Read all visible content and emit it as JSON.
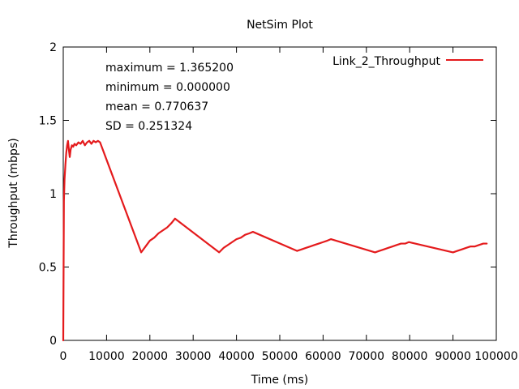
{
  "chart_data": {
    "type": "line",
    "title": "NetSim Plot",
    "xlabel": "Time (ms)",
    "ylabel": "Throughput (mbps)",
    "xlim": [
      0,
      100000
    ],
    "ylim": [
      0,
      2
    ],
    "grid": false,
    "legend_position": "top-right",
    "x_ticks": [
      0,
      10000,
      20000,
      30000,
      40000,
      50000,
      60000,
      70000,
      80000,
      90000,
      100000
    ],
    "x_tick_labels": [
      "0",
      "10000",
      "20000",
      "30000",
      "40000",
      "50000",
      "60000",
      "70000",
      "80000",
      "90000",
      "100000"
    ],
    "y_ticks": [
      0,
      0.5,
      1,
      1.5,
      2
    ],
    "y_tick_labels": [
      "0",
      "0.5",
      "1",
      "1.5",
      "2"
    ],
    "annotations": [
      "maximum = 1.365200",
      "minimum = 0.000000",
      "mean = 0.770637",
      "SD = 0.251324"
    ],
    "series": [
      {
        "name": "Link_2_Throughput",
        "color": "#e41a1c",
        "x": [
          0,
          150,
          300,
          500,
          700,
          900,
          1100,
          1300,
          1500,
          1700,
          2000,
          2300,
          2600,
          3000,
          3500,
          4000,
          4500,
          5000,
          5500,
          6000,
          6500,
          7000,
          7500,
          8000,
          8500,
          18000,
          19000,
          20000,
          21000,
          22000,
          23000,
          24000,
          25000,
          25800,
          36000,
          37000,
          38000,
          39000,
          40000,
          41000,
          42000,
          43000,
          43800,
          54000,
          55000,
          56000,
          57000,
          58000,
          59000,
          60000,
          61000,
          61800,
          72000,
          73000,
          74000,
          75000,
          76000,
          77000,
          78000,
          79000,
          79800,
          90000,
          91000,
          92000,
          93000,
          94000,
          95000,
          96000,
          97000,
          97800
        ],
        "y": [
          0,
          0.95,
          1.1,
          1.2,
          1.28,
          1.33,
          1.36,
          1.3,
          1.25,
          1.3,
          1.33,
          1.32,
          1.34,
          1.33,
          1.35,
          1.34,
          1.36,
          1.33,
          1.35,
          1.36,
          1.34,
          1.36,
          1.35,
          1.36,
          1.35,
          0.6,
          0.64,
          0.68,
          0.7,
          0.73,
          0.75,
          0.77,
          0.8,
          0.83,
          0.6,
          0.63,
          0.65,
          0.67,
          0.69,
          0.7,
          0.72,
          0.73,
          0.74,
          0.61,
          0.62,
          0.63,
          0.64,
          0.65,
          0.66,
          0.67,
          0.68,
          0.69,
          0.6,
          0.61,
          0.62,
          0.63,
          0.64,
          0.65,
          0.66,
          0.66,
          0.67,
          0.6,
          0.61,
          0.62,
          0.63,
          0.64,
          0.64,
          0.65,
          0.66,
          0.66
        ]
      }
    ]
  }
}
